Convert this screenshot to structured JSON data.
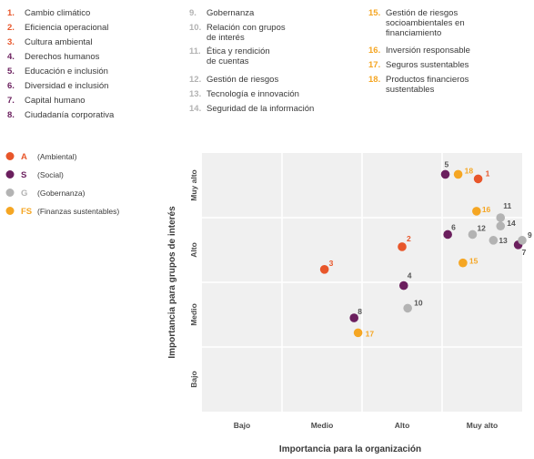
{
  "colors": {
    "A": "#e8562a",
    "S": "#6b1f5e",
    "G": "#b3b3b3",
    "FS": "#f5a623",
    "plot_bg": "#f0f0f0",
    "grid": "#ffffff"
  },
  "topics": [
    {
      "num": "1.",
      "label": "Cambio climático",
      "cat": "A"
    },
    {
      "num": "2.",
      "label": "Eficiencia operacional",
      "cat": "A"
    },
    {
      "num": "3.",
      "label": "Cultura ambiental",
      "cat": "A"
    },
    {
      "num": "4.",
      "label": "Derechos humanos",
      "cat": "S"
    },
    {
      "num": "5.",
      "label": "Educación e inclusión",
      "cat": "S"
    },
    {
      "num": "6.",
      "label": "Diversidad e inclusión",
      "cat": "S"
    },
    {
      "num": "7.",
      "label": "Capital humano",
      "cat": "S"
    },
    {
      "num": "8.",
      "label": "Ciudadanía corporativa",
      "cat": "S"
    },
    {
      "num": "9.",
      "label": "Gobernanza",
      "cat": "G"
    },
    {
      "num": "10.",
      "label": "Relación con grupos de interés",
      "cat": "G"
    },
    {
      "num": "11.",
      "label": "Ética y rendición de cuentas",
      "cat": "G"
    },
    {
      "num": "12.",
      "label": "Gestión de riesgos",
      "cat": "G"
    },
    {
      "num": "13.",
      "label": "Tecnología e innovación",
      "cat": "G"
    },
    {
      "num": "14.",
      "label": "Seguridad de la información",
      "cat": "G"
    },
    {
      "num": "15.",
      "label": "Gestión de riesgos socioambientales en financiamiento",
      "cat": "FS"
    },
    {
      "num": "16.",
      "label": "Inversión responsable",
      "cat": "FS"
    },
    {
      "num": "17.",
      "label": "Seguros sustentables",
      "cat": "FS"
    },
    {
      "num": "18.",
      "label": "Productos financieros sustentables",
      "cat": "FS"
    }
  ],
  "chart_data": {
    "type": "scatter",
    "xlabel": "Importancia para la organización",
    "ylabel": "Importancia para grupos de interés",
    "x_categories": [
      "Bajo",
      "Medio",
      "Alto",
      "Muy alto"
    ],
    "y_categories": [
      "Bajo",
      "Medio",
      "Alto",
      "Muy alto"
    ],
    "xlim": [
      0,
      4
    ],
    "ylim": [
      0,
      4
    ],
    "legend": [
      {
        "code": "A",
        "label": "(Ambiental)"
      },
      {
        "code": "S",
        "label": "(Social)"
      },
      {
        "code": "G",
        "label": "(Gobernanza)"
      },
      {
        "code": "FS",
        "label": "(Finanzas sustentables)"
      }
    ],
    "points": [
      {
        "id": "1",
        "cat": "A",
        "x": 3.45,
        "y": 3.6
      },
      {
        "id": "2",
        "cat": "A",
        "x": 2.5,
        "y": 2.55
      },
      {
        "id": "3",
        "cat": "A",
        "x": 1.53,
        "y": 2.2
      },
      {
        "id": "4",
        "cat": "S",
        "x": 2.52,
        "y": 1.95
      },
      {
        "id": "5",
        "cat": "S",
        "x": 3.04,
        "y": 3.67
      },
      {
        "id": "6",
        "cat": "S",
        "x": 3.07,
        "y": 2.74
      },
      {
        "id": "7",
        "cat": "S",
        "x": 3.95,
        "y": 2.58
      },
      {
        "id": "8",
        "cat": "S",
        "x": 1.9,
        "y": 1.45
      },
      {
        "id": "9",
        "cat": "G",
        "x": 4.0,
        "y": 2.65
      },
      {
        "id": "10",
        "cat": "G",
        "x": 2.57,
        "y": 1.6
      },
      {
        "id": "11",
        "cat": "G",
        "x": 3.73,
        "y": 3.0
      },
      {
        "id": "12",
        "cat": "G",
        "x": 3.38,
        "y": 2.74
      },
      {
        "id": "13",
        "cat": "G",
        "x": 3.64,
        "y": 2.65
      },
      {
        "id": "14",
        "cat": "G",
        "x": 3.73,
        "y": 2.87
      },
      {
        "id": "15",
        "cat": "FS",
        "x": 3.26,
        "y": 2.3
      },
      {
        "id": "16",
        "cat": "FS",
        "x": 3.43,
        "y": 3.1
      },
      {
        "id": "17",
        "cat": "FS",
        "x": 1.95,
        "y": 1.22
      },
      {
        "id": "18",
        "cat": "FS",
        "x": 3.2,
        "y": 3.67
      }
    ]
  }
}
